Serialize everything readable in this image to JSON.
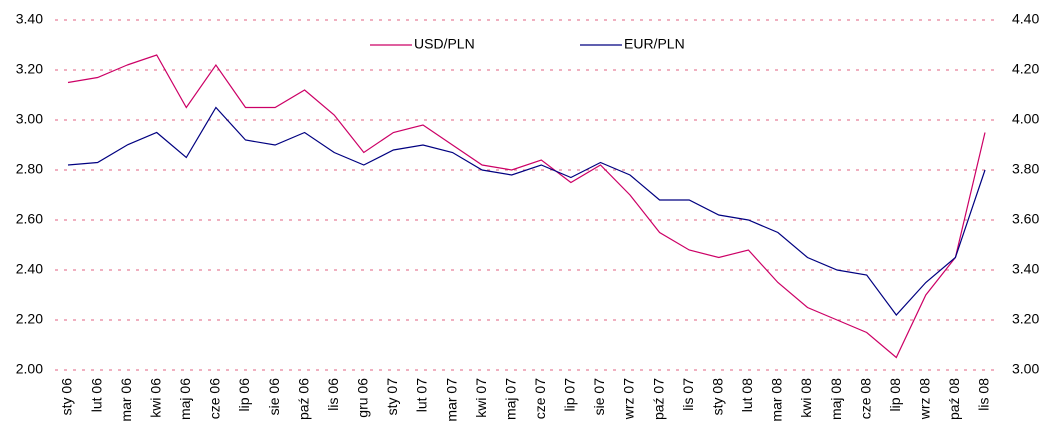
{
  "chart_data": {
    "type": "line",
    "categories": [
      "sty 06",
      "lut 06",
      "mar 06",
      "kwi 06",
      "maj 06",
      "cze 06",
      "lip 06",
      "sie 06",
      "paź 06",
      "lis 06",
      "gru 06",
      "sty 07",
      "lut 07",
      "mar 07",
      "kwi 07",
      "maj 07",
      "cze 07",
      "lip 07",
      "sie 07",
      "wrz 07",
      "paź 07",
      "lis 07",
      "sty 08",
      "lut 08",
      "mar 08",
      "kwi 08",
      "maj 08",
      "cze 08",
      "lip 08",
      "wrz 08",
      "paź 08",
      "lis 08"
    ],
    "series": [
      {
        "name": "USD/PLN",
        "color": "#cc0066",
        "values": [
          3.15,
          3.17,
          3.22,
          3.26,
          3.05,
          3.22,
          3.05,
          3.05,
          3.12,
          3.02,
          2.87,
          2.95,
          2.98,
          2.9,
          2.82,
          2.8,
          2.84,
          2.75,
          2.82,
          2.7,
          2.55,
          2.48,
          2.45,
          2.48,
          2.35,
          2.25,
          2.2,
          2.15,
          2.05,
          2.3,
          2.45,
          2.95
        ]
      },
      {
        "name": "EUR/PLN",
        "color": "#000080",
        "axis": "y2",
        "values": [
          3.82,
          3.83,
          3.9,
          3.95,
          3.85,
          4.05,
          3.92,
          3.9,
          3.95,
          3.87,
          3.82,
          3.88,
          3.9,
          3.87,
          3.8,
          3.78,
          3.82,
          3.77,
          3.83,
          3.78,
          3.68,
          3.68,
          3.62,
          3.6,
          3.55,
          3.45,
          3.4,
          3.38,
          3.22,
          3.35,
          3.45,
          3.8
        ]
      }
    ],
    "ylim": [
      2,
      3.4
    ],
    "yticks": [
      {
        "value": 2,
        "label": "2.00"
      },
      {
        "value": 2.2,
        "label": "2.20"
      },
      {
        "value": 2.4,
        "label": "2.40"
      },
      {
        "value": 2.6,
        "label": "2.60"
      },
      {
        "value": 2.8,
        "label": "2.80"
      },
      {
        "value": 3,
        "label": "3.00"
      },
      {
        "value": 3.2,
        "label": "3.20"
      },
      {
        "value": 3.4,
        "label": "3.40"
      }
    ],
    "y2lim": [
      3,
      4.4
    ],
    "y2ticks": [
      {
        "value": 3,
        "label": "3.00"
      },
      {
        "value": 3.2,
        "label": "3.20"
      },
      {
        "value": 3.4,
        "label": "3.40"
      },
      {
        "value": 3.6,
        "label": "3.60"
      },
      {
        "value": 3.8,
        "label": "3.80"
      },
      {
        "value": 4,
        "label": "4.00"
      },
      {
        "value": 4.2,
        "label": "4.20"
      },
      {
        "value": 4.4,
        "label": "4.40"
      }
    ],
    "grid": true,
    "legend": "top"
  }
}
